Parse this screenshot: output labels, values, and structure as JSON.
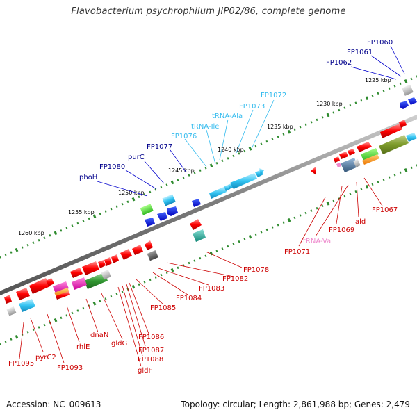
{
  "title": "Flavobacterium psychrophilum JIP02/86, complete genome",
  "footer": {
    "accession": "Accession: NC_009613",
    "summary": "Topology: circular; Length: 2,861,988 bp; Genes: 2,479"
  },
  "colors": {
    "backbone": "#8a8a8a",
    "scale_dots": "#2e8b2e",
    "upper_labels": "#00008b",
    "trna_labels": "#33bbee",
    "lower_labels": "#cc0000",
    "trna_val": "#ee88cc",
    "scale_text": "#000000"
  },
  "scale_labels": [
    "1225 kbp",
    "1230 kbp",
    "1235 kbp",
    "1240 kbp",
    "1245 kbp",
    "1250 kbp",
    "1255 kbp",
    "1260 kbp"
  ],
  "upper_labels": [
    "FP1060",
    "FP1061",
    "FP1062",
    "FP1077",
    "purC",
    "FP1080",
    "phoH"
  ],
  "trna_labels": [
    "FP1072",
    "FP1073",
    "tRNA-Ala",
    "tRNA-Ile",
    "FP1076"
  ],
  "lower_labels": [
    "FP1078",
    "FP1082",
    "FP1083",
    "FP1084",
    "FP1085",
    "FP1086",
    "FP1087",
    "FP1088",
    "gldF",
    "gldG",
    "dnaN",
    "rhlE",
    "FP1093",
    "pyrC2",
    "FP1095",
    "FP1067",
    "ald",
    "FP1069",
    "tRNA-Val",
    "FP1071"
  ]
}
